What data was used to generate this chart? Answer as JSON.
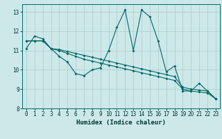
{
  "xlabel": "Humidex (Indice chaleur)",
  "background_color": "#cce8e8",
  "grid_color": "#aacccc",
  "line_color": "#006666",
  "xlim": [
    -0.5,
    23.5
  ],
  "ylim": [
    8.0,
    13.4
  ],
  "yticks": [
    8,
    9,
    10,
    11,
    12,
    13
  ],
  "xticks": [
    0,
    1,
    2,
    3,
    4,
    5,
    6,
    7,
    8,
    9,
    10,
    11,
    12,
    13,
    14,
    15,
    16,
    17,
    18,
    19,
    20,
    21,
    22,
    23
  ],
  "series1": [
    11.1,
    11.75,
    11.6,
    11.1,
    10.7,
    10.4,
    9.8,
    9.7,
    10.0,
    10.1,
    11.0,
    12.2,
    13.1,
    11.0,
    13.1,
    12.75,
    11.5,
    9.9,
    10.2,
    8.9,
    8.9,
    9.3,
    8.9,
    8.5
  ],
  "series2": [
    11.5,
    11.5,
    11.5,
    11.1,
    11.0,
    10.85,
    10.7,
    10.55,
    10.45,
    10.35,
    10.25,
    10.15,
    10.05,
    9.95,
    9.85,
    9.75,
    9.65,
    9.55,
    9.45,
    9.0,
    8.9,
    8.85,
    8.8,
    8.5
  ],
  "series3": [
    11.5,
    11.5,
    11.5,
    11.1,
    11.05,
    10.95,
    10.85,
    10.75,
    10.65,
    10.55,
    10.45,
    10.35,
    10.25,
    10.15,
    10.05,
    9.95,
    9.85,
    9.75,
    9.65,
    9.1,
    9.0,
    8.95,
    8.9,
    8.5
  ]
}
